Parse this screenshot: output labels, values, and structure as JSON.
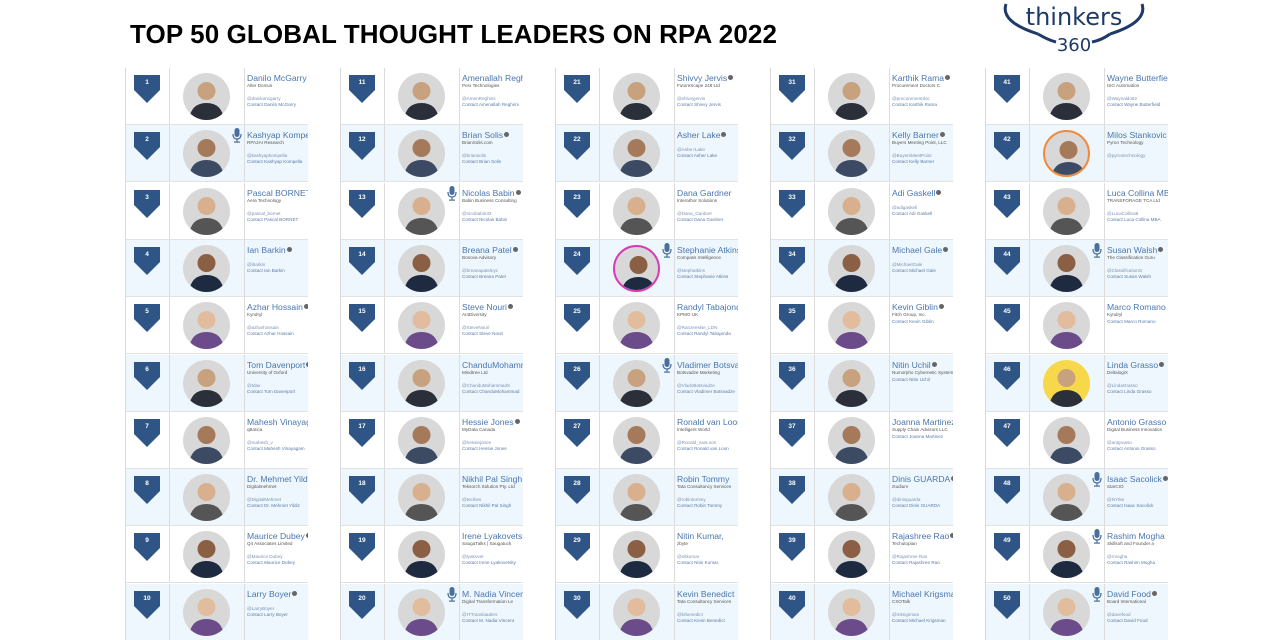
{
  "title": "TOP 50 GLOBAL THOUGHT LEADERS ON RPA 2022",
  "logo": {
    "word": "thinkers",
    "number": "360",
    "color": "#1f3a68"
  },
  "colors": {
    "badge": "#2e5585",
    "name": "#4a76b0",
    "row_alt": "#eef7fd"
  },
  "leaders": [
    {
      "rank": "1",
      "name": "Danilo McGarry",
      "org": "Alter Domus",
      "handle": "@danilomcgarry",
      "contact": "Contact Danilo McGarry",
      "verified": true,
      "mic": false
    },
    {
      "rank": "2",
      "name": "Kashyap Kompella",
      "org": "RPA2AI Research",
      "handle": "@kashyapkompella",
      "contact": "Contact Kashyap Kompella",
      "verified": false,
      "mic": true
    },
    {
      "rank": "3",
      "name": "Pascal BORNET",
      "org": "Aera Technology",
      "handle": "@pascal_bornet",
      "contact": "Contact Pascal BORNET",
      "verified": true,
      "mic": false
    },
    {
      "rank": "4",
      "name": "Ian Barkin",
      "org": "",
      "handle": "@ibarkin",
      "contact": "Contact Ian Barkin",
      "verified": true,
      "mic": false
    },
    {
      "rank": "5",
      "name": "Azhar Hossain",
      "org": "Kyndryl",
      "handle": "@azharhossain",
      "contact": "Contact Azhar Hossain",
      "verified": true,
      "mic": false
    },
    {
      "rank": "6",
      "name": "Tom Davenport",
      "org": "University of Oxford",
      "handle": "@tdav",
      "contact": "Contact Tom Davenport",
      "verified": true,
      "mic": false
    },
    {
      "rank": "7",
      "name": "Mahesh Vinayagam",
      "org": "qBotica",
      "handle": "@mahesh_v",
      "contact": "Contact Mahesh Vinayagam",
      "verified": false,
      "mic": false
    },
    {
      "rank": "8",
      "name": "Dr. Mehmet Yildiz",
      "org": "Digitalmehmet",
      "handle": "@DigitalMehmet",
      "contact": "Contact Dr. Mehmet Yildiz",
      "verified": false,
      "mic": false
    },
    {
      "rank": "9",
      "name": "Maurice Dubey",
      "org": "Q4 Associates Limited",
      "handle": "@Maurice Dubey",
      "contact": "Contact Maurice Dubey",
      "verified": true,
      "mic": false
    },
    {
      "rank": "10",
      "name": "Larry Boyer",
      "org": "",
      "handle": "@LarryBoyer",
      "contact": "Contact Larry Boyer",
      "verified": true,
      "mic": false
    },
    {
      "rank": "11",
      "name": "Amenallah Reghimi",
      "org": "Perx Technologies",
      "handle": "@AmenReghimi",
      "contact": "Contact Amenallah Reghimi",
      "verified": false,
      "mic": false
    },
    {
      "rank": "12",
      "name": "Brian Solis",
      "org": "BrianSolis.com",
      "handle": "@briansolis",
      "contact": "Contact Brian Solis",
      "verified": true,
      "mic": false
    },
    {
      "rank": "13",
      "name": "Nicolas Babin",
      "org": "Babin Business Consulting",
      "handle": "@nicobabin33",
      "contact": "Contact Nicolas Babin",
      "verified": true,
      "mic": true
    },
    {
      "rank": "14",
      "name": "Breana Patel",
      "org": "Bonova Advisory",
      "handle": "@breanapatelnyc",
      "contact": "Contact Breana Patel",
      "verified": true,
      "mic": false
    },
    {
      "rank": "15",
      "name": "Steve Nouri",
      "org": "AI4Diversity",
      "handle": "@SteveNouri",
      "contact": "Contact Steve Nouri",
      "verified": true,
      "mic": false
    },
    {
      "rank": "16",
      "name": "ChanduMohammad",
      "org": "Mindtree Ltd",
      "handle": "@ChanduMohammadS",
      "contact": "Contact ChanduMohammad",
      "verified": false,
      "mic": false
    },
    {
      "rank": "17",
      "name": "Hessie Jones",
      "org": "MyData Canada",
      "handle": "@hessiejones",
      "contact": "Contact Hessie Jones",
      "verified": true,
      "mic": false
    },
    {
      "rank": "18",
      "name": "Nikhil Pal Singh",
      "org": "Teksorch Solution Pty. Ltd",
      "handle": "@techies",
      "contact": "Contact Nikhil Pal Singh",
      "verified": false,
      "mic": false
    },
    {
      "rank": "19",
      "name": "Irene Lyakovetsky",
      "org": "SaugaTalks | Saugatuck",
      "handle": "@lyakovet",
      "contact": "Contact Irene Lyakovetsky",
      "verified": false,
      "mic": false
    },
    {
      "rank": "20",
      "name": "M. Nadia Vincent",
      "org": "Digital Transformation Le",
      "handle": "@ITTranslaaders",
      "contact": "Contact M. Nadia Vincent",
      "verified": false,
      "mic": true
    },
    {
      "rank": "21",
      "name": "Shivvy Jervis",
      "org": "FutureScape 248 Ltd",
      "handle": "@shivvyjervis",
      "contact": "Contact Shivvy Jervis",
      "verified": true,
      "mic": false
    },
    {
      "rank": "22",
      "name": "Asher Lake",
      "org": "",
      "handle": "@Ashe rLake",
      "contact": "Contact Asher Lake",
      "verified": true,
      "mic": false
    },
    {
      "rank": "23",
      "name": "Dana Gardner",
      "org": "Interarbor Solutions",
      "handle": "@Dana_Gardner",
      "contact": "Contact Dana Gardner",
      "verified": false,
      "mic": false
    },
    {
      "rank": "24",
      "name": "Stephanie Atkins",
      "org": "Compass Intelligence",
      "handle": "@stephatkins",
      "contact": "Contact Stephanie Atkins",
      "verified": false,
      "mic": true,
      "ring": "#d63bb8"
    },
    {
      "rank": "25",
      "name": "Randyl Tabajonda",
      "org": "KPMG UK",
      "handle": "@Ranzeeskie_LDN",
      "contact": "Contact Randyl Tabajonda",
      "verified": false,
      "mic": false
    },
    {
      "rank": "26",
      "name": "Vladimer Botsvadze",
      "org": "Botsvadze Marketing",
      "handle": "@VladoBotsvadze",
      "contact": "Contact Vladimer Botsvadze",
      "verified": false,
      "mic": true
    },
    {
      "rank": "27",
      "name": "Ronald van Loon",
      "org": "Intelligent World",
      "handle": "@Ronald_vanLoon",
      "contact": "Contact Ronald van Loon",
      "verified": false,
      "mic": false
    },
    {
      "rank": "28",
      "name": "Robin Tommy",
      "org": "Tata Consultancy Services",
      "handle": "@robintommy",
      "contact": "Contact Robin Tommy",
      "verified": false,
      "mic": false
    },
    {
      "rank": "29",
      "name": "Nitin Kumar,",
      "org": "zbyte",
      "handle": "@nitkumar",
      "contact": "Contact Nitin Kumar,",
      "verified": false,
      "mic": false
    },
    {
      "rank": "30",
      "name": "Kevin Benedict",
      "org": "Tata Consultancy Services",
      "handle": "@krbenedict",
      "contact": "Contact Kevin Benedict",
      "verified": false,
      "mic": false
    },
    {
      "rank": "31",
      "name": "Karthik Rama",
      "org": "Procurement Doctors C",
      "handle": "@procurementdoc",
      "contact": "Contact Karthik Rama",
      "verified": true,
      "mic": false
    },
    {
      "rank": "32",
      "name": "Kelly Barner",
      "org": "Buyers Meeting Point, LLC",
      "handle": "@BuyersMeetPoint",
      "contact": "Contact Kelly Barner",
      "verified": true,
      "mic": false
    },
    {
      "rank": "33",
      "name": "Adi Gaskell",
      "org": "",
      "handle": "@adigaskell",
      "contact": "Contact Adi Gaskell",
      "verified": true,
      "mic": false
    },
    {
      "rank": "34",
      "name": "Michael Gale",
      "org": "",
      "handle": "@MichaelGale",
      "contact": "Contact Michael Gale",
      "verified": true,
      "mic": false
    },
    {
      "rank": "35",
      "name": "Kevin Giblin",
      "org": "Fitch Group, Inc.",
      "handle": "",
      "contact": "Contact Kevin Giblin",
      "verified": true,
      "mic": false
    },
    {
      "rank": "36",
      "name": "Nitin Uchil",
      "org": "Numorpho Cybernetic Systems",
      "handle": "",
      "contact": "Contact Nitin Uchil",
      "verified": true,
      "mic": false
    },
    {
      "rank": "37",
      "name": "Joanna Martinez",
      "org": "Supply Chain Advisors LLC",
      "handle": "",
      "contact": "Contact Joanna Martinez",
      "verified": false,
      "mic": false
    },
    {
      "rank": "38",
      "name": "Dinis GUARDA",
      "org": "ztudium",
      "handle": "@dinisguarda",
      "contact": "Contact Dinis GUARDA",
      "verified": true,
      "mic": false
    },
    {
      "rank": "39",
      "name": "Rajashree Rao",
      "org": "Techutopian",
      "handle": "@Rajashree Rao",
      "contact": "Contact Rajashree Rao",
      "verified": true,
      "mic": false
    },
    {
      "rank": "40",
      "name": "Michael Krigsman",
      "org": "CXOTalk",
      "handle": "@mkrigsman",
      "contact": "Contact Michael Krigsman",
      "verified": false,
      "mic": false
    },
    {
      "rank": "41",
      "name": "Wayne Butterfield",
      "org": "ISG Automation",
      "handle": "@Waynaldo82",
      "contact": "Contact Wayne Butterfield",
      "verified": false,
      "mic": false
    },
    {
      "rank": "42",
      "name": "Milos Stankovic",
      "org": "Pyron Technology",
      "handle": "@pyrontechnology",
      "contact": "",
      "verified": false,
      "mic": false,
      "ring": "#f08a3c"
    },
    {
      "rank": "43",
      "name": "Luca Collina MBA",
      "org": "TRANSFORAGE TCA Ltd",
      "handle": "@LucaCollina8",
      "contact": "Contact Luca Collina MBA",
      "verified": false,
      "mic": false
    },
    {
      "rank": "44",
      "name": "Susan Walsh",
      "org": "The Classification Guru",
      "handle": "@ClassificationG",
      "contact": "Contact Susan Walsh",
      "verified": true,
      "mic": true
    },
    {
      "rank": "45",
      "name": "Marco Romano",
      "org": "Kyndryl",
      "handle": "",
      "contact": "Contact Marco Romano",
      "verified": false,
      "mic": false
    },
    {
      "rank": "46",
      "name": "Linda Grasso",
      "org": "DeltalogiX",
      "handle": "@LindaGrasso",
      "contact": "Contact Linda Grasso",
      "verified": true,
      "mic": false,
      "bg": "#f7d84a"
    },
    {
      "rank": "47",
      "name": "Antonio Grasso",
      "org": "Digital Business Innovation",
      "handle": "@antgrasso",
      "contact": "Contact Antonio Grasso",
      "verified": false,
      "mic": false
    },
    {
      "rank": "48",
      "name": "Isaac Sacolick",
      "org": "StarCIO",
      "handle": "@NYIke",
      "contact": "Contact Isaac Sacolick",
      "verified": true,
      "mic": true
    },
    {
      "rank": "49",
      "name": "Rashim Mogha",
      "org": "Skillsoft and Founder a",
      "handle": "@rmogha",
      "contact": "Contact Rashim Mogha",
      "verified": false,
      "mic": true
    },
    {
      "rank": "50",
      "name": "David Food",
      "org": "Board International",
      "handle": "@davefood",
      "contact": "Contact David Food",
      "verified": true,
      "mic": true
    }
  ]
}
